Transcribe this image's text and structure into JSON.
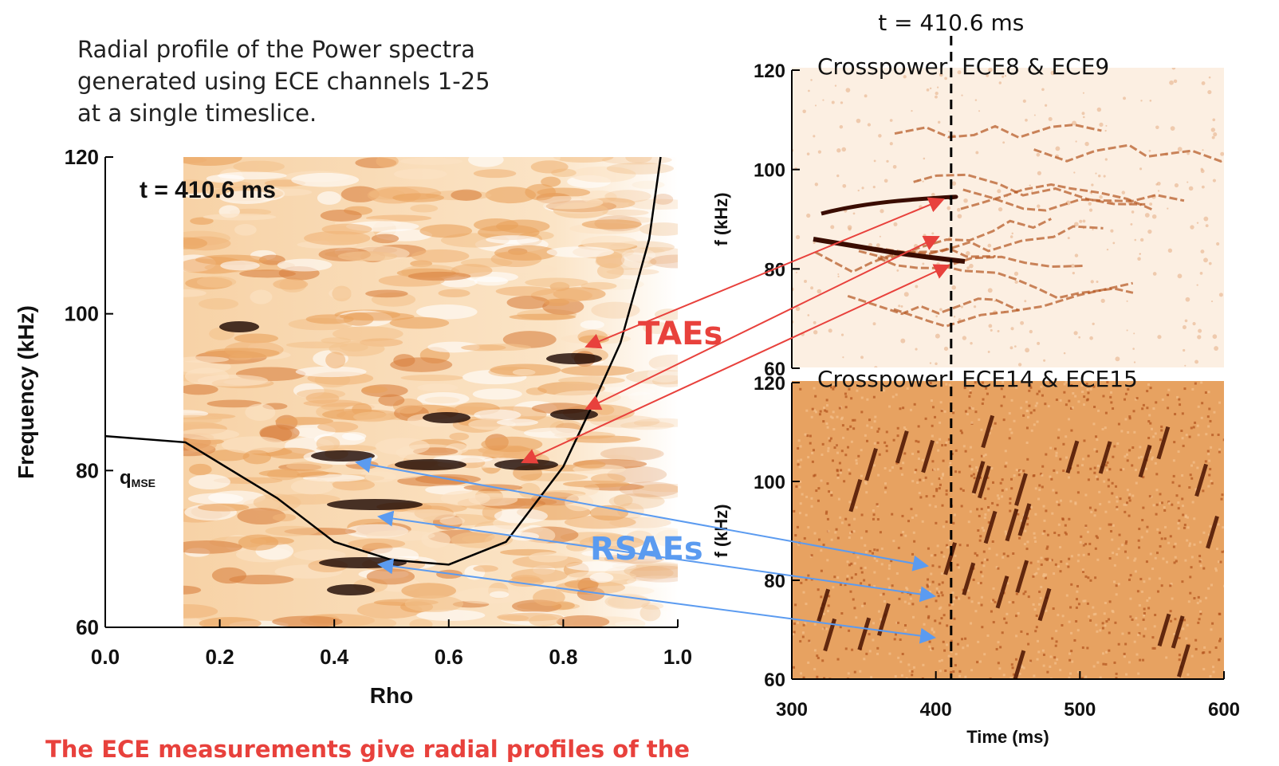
{
  "description": [
    "Radial profile of the Power spectra",
    "generated using ECE channels 1-25",
    "at a single timeslice."
  ],
  "footer": "The ECE measurements give radial profiles of the",
  "chart_data": [
    {
      "type": "heatmap",
      "annotation": "t = 410.6 ms",
      "xlabel": "Rho",
      "ylabel": "Frequency (kHz)",
      "xlim": [
        0,
        1
      ],
      "ylim": [
        60,
        120
      ],
      "xticks": [
        {
          "value": 0,
          "label": "0.0"
        },
        0.2,
        0.4,
        0.6,
        0.8,
        {
          "value": 1,
          "label": "1.0"
        }
      ],
      "yticks": [
        60,
        80,
        100,
        120
      ],
      "series": [
        {
          "name": "q",
          "name_subscript": "MSE",
          "color": "#000000",
          "x": [
            0,
            0.14,
            0.3,
            0.4,
            0.5,
            0.6,
            0.7,
            0.8,
            0.85,
            0.9,
            0.95,
            0.97
          ],
          "values": [
            84.4,
            83.6,
            76.5,
            70.9,
            68.6,
            68.0,
            70.9,
            80.5,
            88.2,
            96.3,
            109.5,
            120
          ]
        }
      ],
      "annotations": [
        {
          "text": "TAEs",
          "color": "#e8413c"
        },
        {
          "text": "RSAEs",
          "color": "#5b9bf0"
        }
      ]
    },
    {
      "type": "heatmap",
      "title": "Crosspower  ECE8 & ECE9",
      "ylabel": "f (kHz)",
      "xlim": [
        300,
        600
      ],
      "ylim": [
        60,
        120
      ],
      "yticks": [
        60,
        80,
        100,
        120
      ],
      "vline": 410.6,
      "vline_label": "t = 410.6 ms"
    },
    {
      "type": "heatmap",
      "title": "Crosspower  ECE14 & ECE15",
      "ylabel": "f (kHz)",
      "xlabel": "Time (ms)",
      "xlim": [
        300,
        600
      ],
      "ylim": [
        60,
        120
      ],
      "xticks": [
        300,
        400,
        500,
        600
      ],
      "yticks": [
        60,
        80,
        100,
        120
      ]
    }
  ]
}
